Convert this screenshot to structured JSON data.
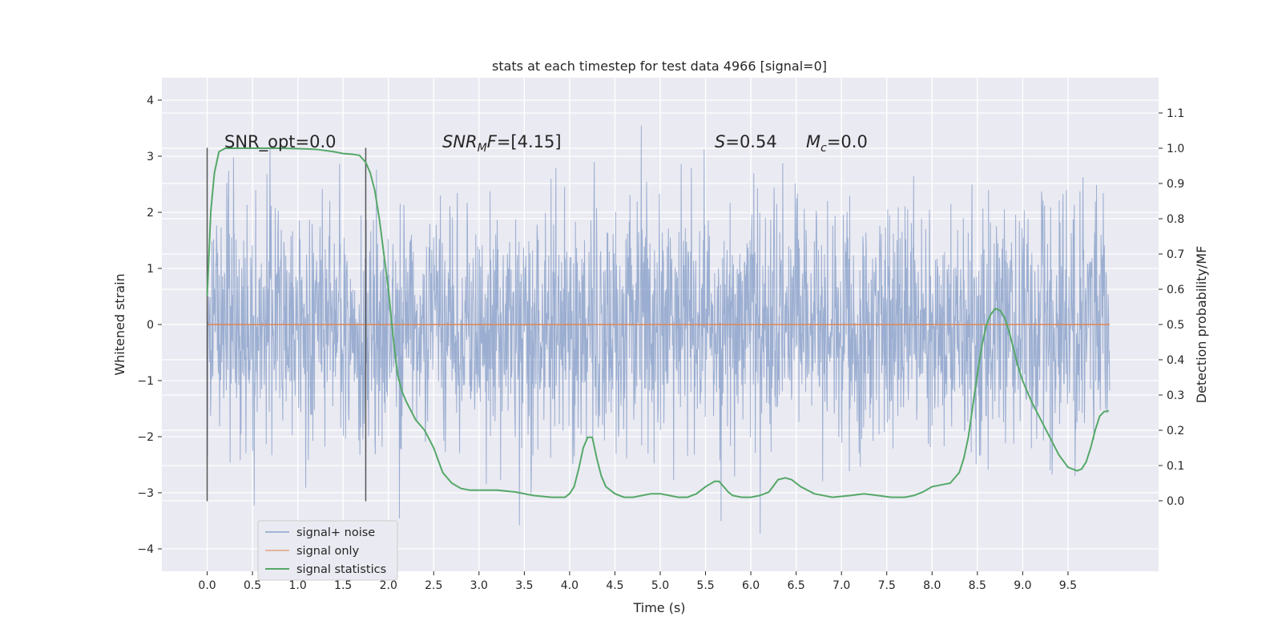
{
  "chart_data": {
    "type": "line",
    "title": "stats at each timestep for test data 4966 [signal=0]",
    "xlabel": "Time (s)",
    "ylabel_left": "Whitened strain",
    "ylabel_right": "Detection probability/MF",
    "xlim": [
      -0.5,
      10.5
    ],
    "ylim_left": [
      -4.4,
      4.4
    ],
    "ylim_right": [
      -0.2,
      1.2
    ],
    "x_ticks": [
      0.0,
      0.5,
      1.0,
      1.5,
      2.0,
      2.5,
      3.0,
      3.5,
      4.0,
      4.5,
      5.0,
      5.5,
      6.0,
      6.5,
      7.0,
      7.5,
      8.0,
      8.5,
      9.0,
      9.5
    ],
    "x_tick_labels": [
      "0.0",
      "0.5",
      "1.0",
      "1.5",
      "2.0",
      "2.5",
      "3.0",
      "3.5",
      "4.0",
      "4.5",
      "5.0",
      "5.5",
      "6.0",
      "6.5",
      "7.0",
      "7.5",
      "8.0",
      "8.5",
      "9.0",
      "9.5"
    ],
    "left_ticks": [
      4,
      3,
      2,
      1,
      0,
      -1,
      -2,
      -3,
      -4
    ],
    "left_tick_labels": [
      "4",
      "3",
      "2",
      "1",
      "0",
      "−1",
      "−2",
      "−3",
      "−4"
    ],
    "right_ticks": [
      1.1,
      1.0,
      0.9,
      0.8,
      0.7,
      0.6,
      0.5,
      0.4,
      0.3,
      0.2,
      0.1,
      0.0
    ],
    "right_tick_labels": [
      "1.1",
      "1.0",
      "0.9",
      "0.8",
      "0.7",
      "0.6",
      "0.5",
      "0.4",
      "0.3",
      "0.2",
      "0.1",
      "0.0"
    ],
    "grid": true,
    "background": "#eaeaf2",
    "annotations": {
      "snr_opt": "SNR_opt=0.0",
      "snr_mf_base": "SNR",
      "snr_mf_sub": "M",
      "snr_mf_rest": "F",
      "snr_mf_value": "=[4.15]",
      "s_symbol": "S",
      "s_value": "=0.54",
      "mc_symbol": "M",
      "mc_sub": "c",
      "mc_value": "=0.0"
    },
    "vlines": {
      "x": [
        0.0,
        1.75
      ],
      "ymin": -3.15,
      "ymax": 3.15,
      "color": "#555555"
    },
    "legend": {
      "position": "lower-left",
      "entries": [
        "signal+ noise",
        "signal only",
        "signal statistics"
      ]
    },
    "series": [
      {
        "name": "signal+ noise",
        "kind": "noise",
        "color": "#4c72b0",
        "alpha": 0.5,
        "x_range": [
          0.0,
          9.96
        ],
        "envelope": {
          "mean": 0.0,
          "std": 1.0
        }
      },
      {
        "name": "signal only",
        "kind": "line",
        "color": "#dd8452",
        "x": [
          0.0,
          9.96
        ],
        "y": [
          0.0,
          0.0
        ]
      },
      {
        "name": "signal statistics",
        "kind": "line",
        "axis": "right",
        "color": "#55a868",
        "x": [
          0.0,
          0.04,
          0.08,
          0.13,
          0.2,
          0.3,
          0.5,
          0.8,
          1.0,
          1.2,
          1.4,
          1.5,
          1.6,
          1.68,
          1.75,
          1.8,
          1.85,
          1.9,
          1.95,
          2.0,
          2.05,
          2.1,
          2.15,
          2.2,
          2.3,
          2.4,
          2.5,
          2.6,
          2.7,
          2.8,
          2.9,
          3.0,
          3.2,
          3.4,
          3.6,
          3.8,
          3.95,
          4.0,
          4.05,
          4.1,
          4.15,
          4.2,
          4.25,
          4.3,
          4.35,
          4.4,
          4.5,
          4.6,
          4.7,
          4.8,
          4.9,
          5.0,
          5.1,
          5.2,
          5.3,
          5.4,
          5.5,
          5.6,
          5.65,
          5.7,
          5.75,
          5.8,
          5.9,
          6.0,
          6.1,
          6.2,
          6.3,
          6.38,
          6.45,
          6.55,
          6.7,
          6.9,
          7.1,
          7.25,
          7.4,
          7.55,
          7.7,
          7.8,
          7.9,
          8.0,
          8.1,
          8.2,
          8.3,
          8.35,
          8.4,
          8.45,
          8.5,
          8.55,
          8.6,
          8.65,
          8.7,
          8.75,
          8.8,
          8.85,
          8.9,
          8.95,
          9.0,
          9.1,
          9.2,
          9.3,
          9.4,
          9.5,
          9.6,
          9.65,
          9.7,
          9.75,
          9.8,
          9.85,
          9.9,
          9.95
        ],
        "y": [
          0.58,
          0.82,
          0.93,
          0.99,
          1.0,
          1.0,
          1.0,
          1.0,
          0.999,
          0.997,
          0.99,
          0.985,
          0.983,
          0.98,
          0.96,
          0.93,
          0.88,
          0.8,
          0.7,
          0.6,
          0.47,
          0.36,
          0.31,
          0.28,
          0.23,
          0.2,
          0.15,
          0.08,
          0.05,
          0.035,
          0.03,
          0.03,
          0.03,
          0.025,
          0.015,
          0.01,
          0.01,
          0.02,
          0.04,
          0.09,
          0.15,
          0.18,
          0.18,
          0.12,
          0.07,
          0.04,
          0.02,
          0.01,
          0.01,
          0.015,
          0.02,
          0.02,
          0.015,
          0.01,
          0.01,
          0.02,
          0.04,
          0.055,
          0.055,
          0.04,
          0.025,
          0.015,
          0.01,
          0.01,
          0.015,
          0.025,
          0.06,
          0.065,
          0.06,
          0.04,
          0.02,
          0.01,
          0.015,
          0.02,
          0.015,
          0.01,
          0.01,
          0.015,
          0.025,
          0.04,
          0.045,
          0.05,
          0.08,
          0.12,
          0.18,
          0.27,
          0.36,
          0.44,
          0.5,
          0.53,
          0.545,
          0.54,
          0.52,
          0.48,
          0.43,
          0.38,
          0.34,
          0.28,
          0.23,
          0.18,
          0.13,
          0.095,
          0.085,
          0.09,
          0.11,
          0.15,
          0.2,
          0.24,
          0.253,
          0.255
        ]
      }
    ]
  }
}
